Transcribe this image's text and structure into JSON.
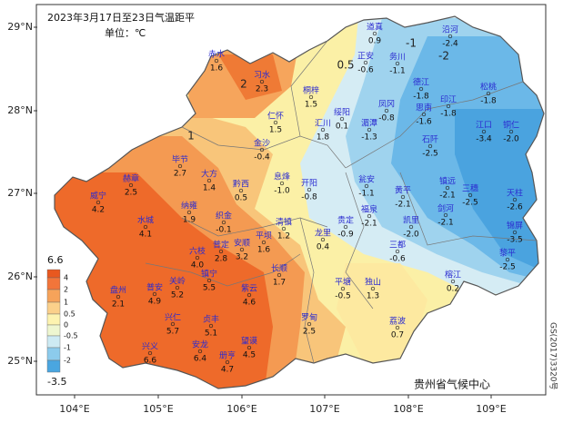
{
  "header": {
    "title": "2023年3月17日至23日气温距平",
    "unit": "单位：℃"
  },
  "axes": {
    "lat": [
      "29°N",
      "28°N",
      "27°N",
      "26°N",
      "25°N"
    ],
    "lon": [
      "104°E",
      "105°E",
      "106°E",
      "107°E",
      "108°E",
      "109°E"
    ]
  },
  "legend": {
    "labels": [
      "6.6",
      "4",
      "2",
      "1",
      "0.5",
      "0",
      "-0.5",
      "-1",
      "-2",
      "-3.5"
    ]
  },
  "stations": [
    {
      "name": "赤水",
      "value": "1.6"
    },
    {
      "name": "习水",
      "value": "2.3"
    },
    {
      "name": "桐梓",
      "value": "1.5"
    },
    {
      "name": "仁怀",
      "value": "1.5"
    },
    {
      "name": "绥阳",
      "value": "0.1"
    },
    {
      "name": "道真",
      "value": "0.9"
    },
    {
      "name": "正安",
      "value": "-0.6"
    },
    {
      "name": "务川",
      "value": "-1.1"
    },
    {
      "name": "沿河",
      "value": "-2.4"
    },
    {
      "name": "德江",
      "value": "-1.8"
    },
    {
      "name": "凤冈",
      "value": "-0.8"
    },
    {
      "name": "湄潭",
      "value": "-1.3"
    },
    {
      "name": "印江",
      "value": "-1.8"
    },
    {
      "name": "思南",
      "value": "-1.6"
    },
    {
      "name": "松桃",
      "value": "-1.8"
    },
    {
      "name": "江口",
      "value": "-3.4"
    },
    {
      "name": "铜仁",
      "value": "-2.0"
    },
    {
      "name": "石阡",
      "value": "-2.5"
    },
    {
      "name": "汇川",
      "value": "1.8"
    },
    {
      "name": "金沙",
      "value": "-0.4"
    },
    {
      "name": "毕节",
      "value": "2.7"
    },
    {
      "name": "大方",
      "value": "1.4"
    },
    {
      "name": "黔西",
      "value": "0.5"
    },
    {
      "name": "息烽",
      "value": "-1.0"
    },
    {
      "name": "开阳",
      "value": "-0.8"
    },
    {
      "name": "瓮安",
      "value": "-1.1"
    },
    {
      "name": "赫章",
      "value": "2.5"
    },
    {
      "name": "威宁",
      "value": "4.2"
    },
    {
      "name": "纳雍",
      "value": "1.9"
    },
    {
      "name": "织金",
      "value": "-0.1"
    },
    {
      "name": "清镇",
      "value": "1.2"
    },
    {
      "name": "福泉",
      "value": "-2.1"
    },
    {
      "name": "黄平",
      "value": "-2.1"
    },
    {
      "name": "镇远",
      "value": "-2.1"
    },
    {
      "name": "三穗",
      "value": "-2.5"
    },
    {
      "name": "天柱",
      "value": "-2.6"
    },
    {
      "name": "剑河",
      "value": "-2.1"
    },
    {
      "name": "凯里",
      "value": "-2.0"
    },
    {
      "name": "锦屏",
      "value": "-3.5"
    },
    {
      "name": "黎平",
      "value": "-2.5"
    },
    {
      "name": "榕江",
      "value": "0.2"
    },
    {
      "name": "三都",
      "value": "-0.6"
    },
    {
      "name": "贵定",
      "value": "-0.9"
    },
    {
      "name": "龙里",
      "value": "0.4"
    },
    {
      "name": "平塘",
      "value": "-0.5"
    },
    {
      "name": "独山",
      "value": "1.3"
    },
    {
      "name": "荔波",
      "value": "0.7"
    },
    {
      "name": "罗甸",
      "value": "2.5"
    },
    {
      "name": "长顺",
      "value": "1.7"
    },
    {
      "name": "紫云",
      "value": "4.6"
    },
    {
      "name": "镇宁",
      "value": "5.5"
    },
    {
      "name": "关岭",
      "value": "5.2"
    },
    {
      "name": "普安",
      "value": "4.9"
    },
    {
      "name": "水城",
      "value": "4.1"
    },
    {
      "name": "盘州",
      "value": "2.1"
    },
    {
      "name": "六枝",
      "value": "4.0"
    },
    {
      "name": "普定",
      "value": "2.8"
    },
    {
      "name": "安顺",
      "value": "3.2"
    },
    {
      "name": "平坝",
      "value": "1.6"
    },
    {
      "name": "兴仁",
      "value": "5.7"
    },
    {
      "name": "贞丰",
      "value": "5.1"
    },
    {
      "name": "兴义",
      "value": "6.6"
    },
    {
      "name": "安龙",
      "value": "6.4"
    },
    {
      "name": "册亨",
      "value": "4.7"
    },
    {
      "name": "望谟",
      "value": "4.5"
    }
  ],
  "contour_labels": [
    "2",
    "0.5",
    "-2",
    "1",
    "-1"
  ],
  "footer": {
    "agency": "贵州省气候中心",
    "approval": "GS(2017)3320号"
  }
}
